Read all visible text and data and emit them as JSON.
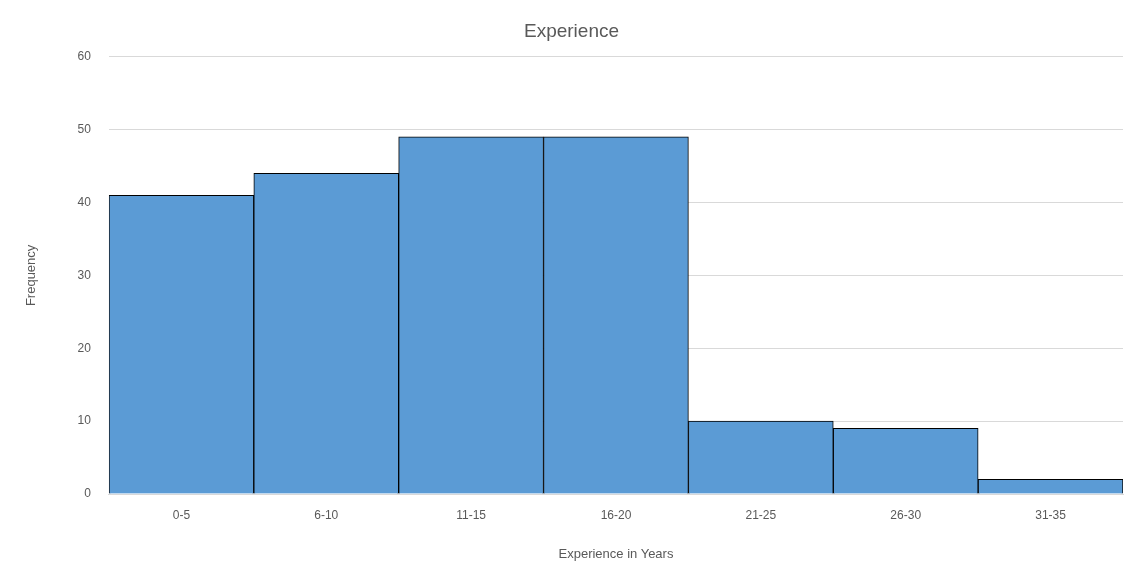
{
  "chart_data": {
    "type": "bar",
    "title": "Experience",
    "xlabel": "Experience in Years",
    "ylabel": "Frequency",
    "categories": [
      "0-5",
      "6-10",
      "11-15",
      "16-20",
      "21-25",
      "26-30",
      "31-35"
    ],
    "values": [
      41,
      44,
      49,
      49,
      10,
      9,
      2
    ],
    "color": "#5b9bd5",
    "ylim": [
      0,
      60
    ],
    "yticks": [
      0,
      10,
      20,
      30,
      40,
      50,
      60
    ],
    "grid": "y",
    "legend": false
  }
}
